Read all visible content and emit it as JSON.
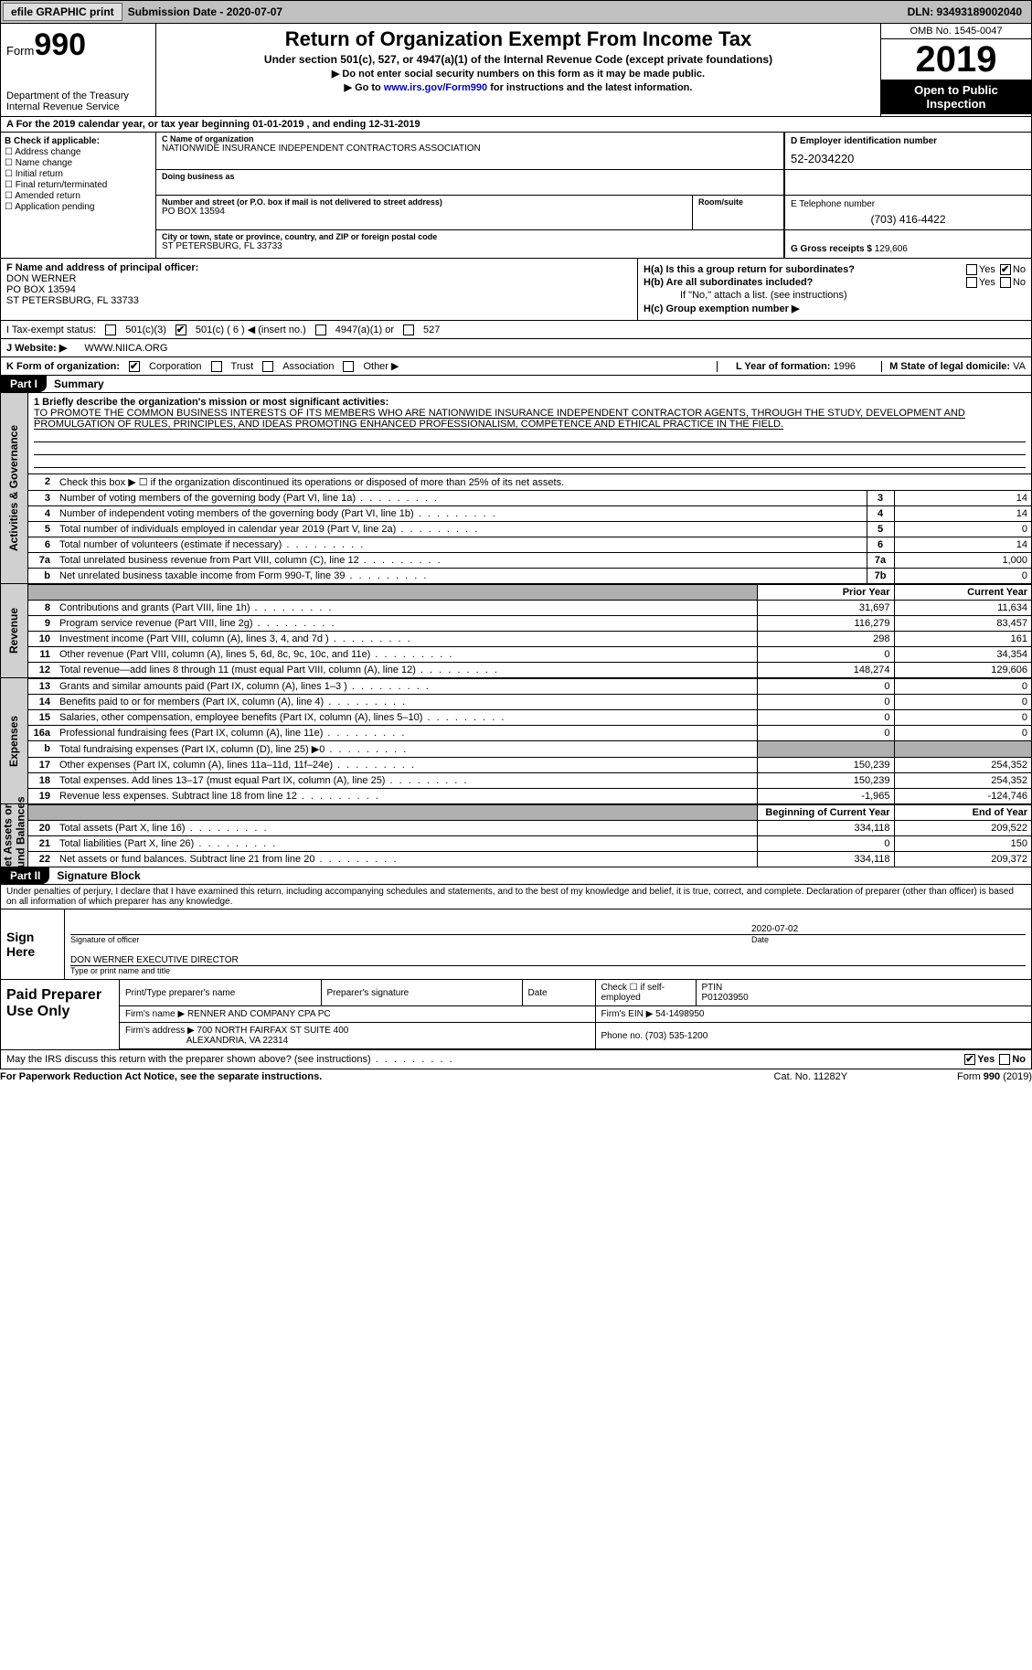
{
  "topbar": {
    "efile": "efile GRAPHIC print",
    "submission": "Submission Date - 2020-07-07",
    "dln": "DLN: 93493189002040"
  },
  "header": {
    "form_word": "Form",
    "form_no": "990",
    "dept1": "Department of the Treasury",
    "dept2": "Internal Revenue Service",
    "title": "Return of Organization Exempt From Income Tax",
    "sub1": "Under section 501(c), 527, or 4947(a)(1) of the Internal Revenue Code (except private foundations)",
    "sub2": "▶ Do not enter social security numbers on this form as it may be made public.",
    "sub3_pre": "▶ Go to ",
    "sub3_link": "www.irs.gov/Form990",
    "sub3_post": " for instructions and the latest information.",
    "omb": "OMB No. 1545-0047",
    "year": "2019",
    "open1": "Open to Public",
    "open2": "Inspection"
  },
  "row_a": "A For the 2019 calendar year, or tax year beginning 01-01-2019    , and ending 12-31-2019",
  "col_b": {
    "hdr": "B Check if applicable:",
    "items": [
      "Address change",
      "Name change",
      "Initial return",
      "Final return/terminated",
      "Amended return",
      "Application pending"
    ]
  },
  "box_c": {
    "lbl": "C Name of organization",
    "name": "NATIONWIDE INSURANCE INDEPENDENT CONTRACTORS ASSOCIATION",
    "dba_lbl": "Doing business as",
    "addr_lbl": "Number and street (or P.O. box if mail is not delivered to street address)",
    "room_lbl": "Room/suite",
    "addr": "PO BOX 13594",
    "city_lbl": "City or town, state or province, country, and ZIP or foreign postal code",
    "city": "ST PETERSBURG, FL  33733"
  },
  "col_d": {
    "ein_lbl": "D Employer identification number",
    "ein": "52-2034220",
    "tel_lbl": "E Telephone number",
    "tel": "(703) 416-4422",
    "g_lbl": "G Gross receipts $ ",
    "g_val": "129,606"
  },
  "row_f": {
    "lbl": "F Name and address of principal officer:",
    "name": "DON WERNER",
    "addr1": "PO BOX 13594",
    "addr2": "ST PETERSBURG, FL  33733"
  },
  "row_h": {
    "ha": "H(a)  Is this a group return for subordinates?",
    "hb": "H(b)  Are all subordinates included?",
    "hb_note": "If \"No,\" attach a list. (see instructions)",
    "hc": "H(c)  Group exemption number ▶",
    "yes": "Yes",
    "no": "No"
  },
  "row_i": {
    "lbl": "I  Tax-exempt status:",
    "o1": "501(c)(3)",
    "o2": "501(c) ( 6 ) ◀ (insert no.)",
    "o3": "4947(a)(1) or",
    "o4": "527"
  },
  "row_j": {
    "lbl": "J  Website: ▶",
    "val": "WWW.NIICA.ORG"
  },
  "row_k": {
    "lbl": "K Form of organization:",
    "o1": "Corporation",
    "o2": "Trust",
    "o3": "Association",
    "o4": "Other ▶"
  },
  "row_l": {
    "lbl": "L Year of formation: ",
    "val": "1996"
  },
  "row_m": {
    "lbl": "M State of legal domicile: ",
    "val": "VA"
  },
  "part1": {
    "tab": "Part I",
    "title": "Summary"
  },
  "mission": {
    "lbl": "1   Briefly describe the organization's mission or most significant activities:",
    "txt": "TO PROMOTE THE COMMON BUSINESS INTERESTS OF ITS MEMBERS WHO ARE NATIONWIDE INSURANCE INDEPENDENT CONTRACTOR AGENTS, THROUGH THE STUDY, DEVELOPMENT AND PROMULGATION OF RULES, PRINCIPLES, AND IDEAS PROMOTING ENHANCED PROFESSIONALISM, COMPETENCE AND ETHICAL PRACTICE IN THE FIELD."
  },
  "gov_rows": [
    {
      "n": "2",
      "t": "Check this box ▶ ☐  if the organization discontinued its operations or disposed of more than 25% of its net assets."
    },
    {
      "n": "3",
      "t": "Number of voting members of the governing body (Part VI, line 1a)",
      "ln": "3",
      "v": "14"
    },
    {
      "n": "4",
      "t": "Number of independent voting members of the governing body (Part VI, line 1b)",
      "ln": "4",
      "v": "14"
    },
    {
      "n": "5",
      "t": "Total number of individuals employed in calendar year 2019 (Part V, line 2a)",
      "ln": "5",
      "v": "0"
    },
    {
      "n": "6",
      "t": "Total number of volunteers (estimate if necessary)",
      "ln": "6",
      "v": "14"
    },
    {
      "n": "7a",
      "t": "Total unrelated business revenue from Part VIII, column (C), line 12",
      "ln": "7a",
      "v": "1,000"
    },
    {
      "n": "b",
      "t": "Net unrelated business taxable income from Form 990-T, line 39",
      "ln": "7b",
      "v": "0"
    }
  ],
  "rev_hdr": {
    "py": "Prior Year",
    "cy": "Current Year"
  },
  "rev_rows": [
    {
      "n": "8",
      "t": "Contributions and grants (Part VIII, line 1h)",
      "py": "31,697",
      "cy": "11,634"
    },
    {
      "n": "9",
      "t": "Program service revenue (Part VIII, line 2g)",
      "py": "116,279",
      "cy": "83,457"
    },
    {
      "n": "10",
      "t": "Investment income (Part VIII, column (A), lines 3, 4, and 7d )",
      "py": "298",
      "cy": "161"
    },
    {
      "n": "11",
      "t": "Other revenue (Part VIII, column (A), lines 5, 6d, 8c, 9c, 10c, and 11e)",
      "py": "0",
      "cy": "34,354"
    },
    {
      "n": "12",
      "t": "Total revenue—add lines 8 through 11 (must equal Part VIII, column (A), line 12)",
      "py": "148,274",
      "cy": "129,606"
    }
  ],
  "exp_rows": [
    {
      "n": "13",
      "t": "Grants and similar amounts paid (Part IX, column (A), lines 1–3 )",
      "py": "0",
      "cy": "0"
    },
    {
      "n": "14",
      "t": "Benefits paid to or for members (Part IX, column (A), line 4)",
      "py": "0",
      "cy": "0"
    },
    {
      "n": "15",
      "t": "Salaries, other compensation, employee benefits (Part IX, column (A), lines 5–10)",
      "py": "0",
      "cy": "0"
    },
    {
      "n": "16a",
      "t": "Professional fundraising fees (Part IX, column (A), line 11e)",
      "py": "0",
      "cy": "0"
    },
    {
      "n": "b",
      "t": "Total fundraising expenses (Part IX, column (D), line 25) ▶0",
      "py": "",
      "cy": "",
      "grey": true
    },
    {
      "n": "17",
      "t": "Other expenses (Part IX, column (A), lines 11a–11d, 11f–24e)",
      "py": "150,239",
      "cy": "254,352"
    },
    {
      "n": "18",
      "t": "Total expenses. Add lines 13–17 (must equal Part IX, column (A), line 25)",
      "py": "150,239",
      "cy": "254,352"
    },
    {
      "n": "19",
      "t": "Revenue less expenses. Subtract line 18 from line 12",
      "py": "-1,965",
      "cy": "-124,746"
    }
  ],
  "na_hdr": {
    "py": "Beginning of Current Year",
    "cy": "End of Year"
  },
  "na_rows": [
    {
      "n": "20",
      "t": "Total assets (Part X, line 16)",
      "py": "334,118",
      "cy": "209,522"
    },
    {
      "n": "21",
      "t": "Total liabilities (Part X, line 26)",
      "py": "0",
      "cy": "150"
    },
    {
      "n": "22",
      "t": "Net assets or fund balances. Subtract line 21 from line 20",
      "py": "334,118",
      "cy": "209,372"
    }
  ],
  "part2": {
    "tab": "Part II",
    "title": "Signature Block"
  },
  "perjury": "Under penalties of perjury, I declare that I have examined this return, including accompanying schedules and statements, and to the best of my knowledge and belief, it is true, correct, and complete. Declaration of preparer (other than officer) is based on all information of which preparer has any knowledge.",
  "sign": {
    "here": "Sign Here",
    "sig_lbl": "Signature of officer",
    "date_lbl": "Date",
    "date": "2020-07-02",
    "name": "DON WERNER EXECUTIVE DIRECTOR",
    "name_lbl": "Type or print name and title"
  },
  "prep": {
    "left": "Paid Preparer Use Only",
    "c1": "Print/Type preparer's name",
    "c2": "Preparer's signature",
    "c3": "Date",
    "c4a": "Check ☐ if self-employed",
    "c4b_lbl": "PTIN",
    "c4b": "P01203950",
    "firm_lbl": "Firm's name   ▶ ",
    "firm": "RENNER AND COMPANY CPA PC",
    "ein_lbl": "Firm's EIN ▶ ",
    "ein": "54-1498950",
    "addr_lbl": "Firm's address ▶ ",
    "addr1": "700 NORTH FAIRFAX ST SUITE 400",
    "addr2": "ALEXANDRIA, VA  22314",
    "phone_lbl": "Phone no. ",
    "phone": "(703) 535-1200"
  },
  "discuss": "May the IRS discuss this return with the preparer shown above? (see instructions)",
  "bottom": {
    "l": "For Paperwork Reduction Act Notice, see the separate instructions.",
    "c": "Cat. No. 11282Y",
    "r": "Form 990 (2019)"
  }
}
